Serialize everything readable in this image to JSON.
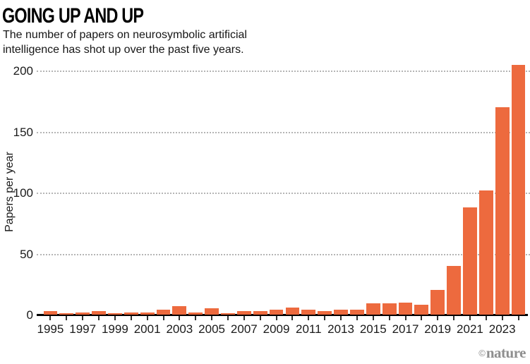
{
  "header": {
    "title": "GOING UP AND UP",
    "subtitle_line1": "The number of papers on neurosymbolic artificial",
    "subtitle_line2": "intelligence has shot up over the past five years."
  },
  "chart_data": {
    "type": "bar",
    "title": "GOING UP AND UP",
    "subtitle": "The number of papers on neurosymbolic artificial intelligence has shot up over the past five years.",
    "categories": [
      1995,
      1996,
      1997,
      1998,
      1999,
      2000,
      2001,
      2002,
      2003,
      2004,
      2005,
      2006,
      2007,
      2008,
      2009,
      2010,
      2011,
      2012,
      2013,
      2014,
      2015,
      2016,
      2017,
      2018,
      2019,
      2020,
      2021,
      2022,
      2023,
      2024
    ],
    "values": [
      3,
      1,
      2,
      3,
      1,
      2,
      2,
      4,
      7,
      2,
      5,
      1,
      3,
      3,
      4,
      6,
      4,
      3,
      4,
      4,
      9,
      9,
      10,
      8,
      20,
      40,
      88,
      102,
      170,
      205
    ],
    "xlabel": "",
    "ylabel": "Papers per year",
    "ylim": [
      0,
      210
    ],
    "yticks": [
      0,
      50,
      100,
      150,
      200
    ],
    "xtick_labels": [
      "1995",
      "1997",
      "1999",
      "2001",
      "2003",
      "2005",
      "2007",
      "2009",
      "2011",
      "2013",
      "2015",
      "2017",
      "2019",
      "2021",
      "2023"
    ],
    "bar_color": "#ED6A3E",
    "grid": "horizontal-dotted",
    "legend": "none"
  },
  "footer": {
    "credit_symbol": "©",
    "credit_name": "nature"
  }
}
